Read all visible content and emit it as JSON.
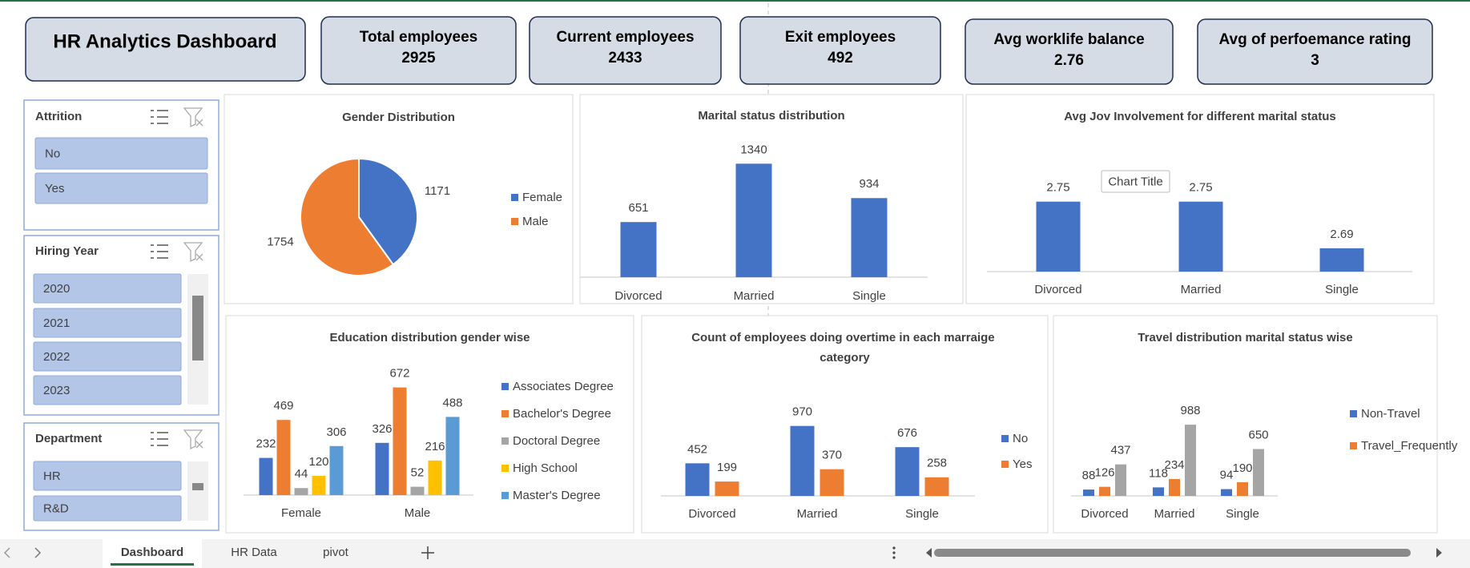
{
  "header": {
    "title": "HR Analytics Dashboard"
  },
  "kpis": [
    {
      "label": "Total employees",
      "value": 2925
    },
    {
      "label": "Current employees",
      "value": 2433
    },
    {
      "label": "Exit employees",
      "value": 492
    },
    {
      "label": "Avg worklife balance",
      "value": 2.76
    },
    {
      "label": "Avg of perfoemance rating",
      "value": 3
    }
  ],
  "slicers": [
    {
      "title": "Attrition",
      "items": [
        "No",
        "Yes"
      ]
    },
    {
      "title": "Hiring Year",
      "items": [
        "2020",
        "2021",
        "2022",
        "2023"
      ]
    },
    {
      "title": "Department",
      "items": [
        "HR",
        "R&D"
      ]
    }
  ],
  "chart_data": [
    {
      "type": "pie",
      "title": "Gender Distribution",
      "categories": [
        "Female",
        "Male"
      ],
      "values": [
        1171,
        1754
      ],
      "colors": [
        "#4472c4",
        "#ed7d31"
      ],
      "legend": "right"
    },
    {
      "type": "bar",
      "title": "Marital status distribution",
      "categories": [
        "Divorced",
        "Married",
        "Single"
      ],
      "values": [
        651,
        1340,
        934
      ],
      "color": "#4472c4",
      "ylim": [
        0,
        1400
      ]
    },
    {
      "type": "bar",
      "title": "Avg Jov Involvement for different marital status",
      "annotation": "Chart Title",
      "categories": [
        "Divorced",
        "Married",
        "Single"
      ],
      "values": [
        2.75,
        2.75,
        2.69
      ],
      "color": "#4472c4",
      "ylim": [
        2.66,
        2.76
      ]
    },
    {
      "type": "bar",
      "title": "Education distribution gender wise",
      "categories": [
        "Female",
        "Male"
      ],
      "ylim": [
        0,
        700
      ],
      "legend": "right",
      "series": [
        {
          "name": "Associates Degree",
          "color": "#4472c4",
          "values": [
            232,
            326
          ]
        },
        {
          "name": "Bachelor's Degree",
          "color": "#ed7d31",
          "values": [
            469,
            672
          ]
        },
        {
          "name": "Doctoral Degree",
          "color": "#a5a5a5",
          "values": [
            44,
            52
          ]
        },
        {
          "name": "High School",
          "color": "#ffc000",
          "values": [
            120,
            216
          ]
        },
        {
          "name": "Master's Degree",
          "color": "#5b9bd5",
          "values": [
            306,
            488
          ]
        }
      ]
    },
    {
      "type": "bar",
      "title": "Count of employees doing overtime in each marraige category",
      "categories": [
        "Divorced",
        "Married",
        "Single"
      ],
      "ylim": [
        0,
        1000
      ],
      "legend": "right",
      "series": [
        {
          "name": "No",
          "color": "#4472c4",
          "values": [
            452,
            970,
            676
          ]
        },
        {
          "name": "Yes",
          "color": "#ed7d31",
          "values": [
            199,
            370,
            258
          ]
        }
      ]
    },
    {
      "type": "bar",
      "title": "Travel distribution marital status wise",
      "categories": [
        "Divorced",
        "Married",
        "Single"
      ],
      "ylim": [
        0,
        1000
      ],
      "legend": "right",
      "series": [
        {
          "name": "Non-Travel",
          "color": "#4472c4",
          "values": [
            88,
            118,
            94
          ]
        },
        {
          "name": "Travel_Frequently",
          "color": "#ed7d31",
          "values": [
            126,
            234,
            190
          ]
        },
        {
          "color": "#a5a5a5",
          "values": [
            437,
            988,
            650
          ]
        }
      ]
    }
  ],
  "tabs": {
    "items": [
      "Dashboard",
      "HR Data",
      "pivot"
    ],
    "active": 0
  }
}
